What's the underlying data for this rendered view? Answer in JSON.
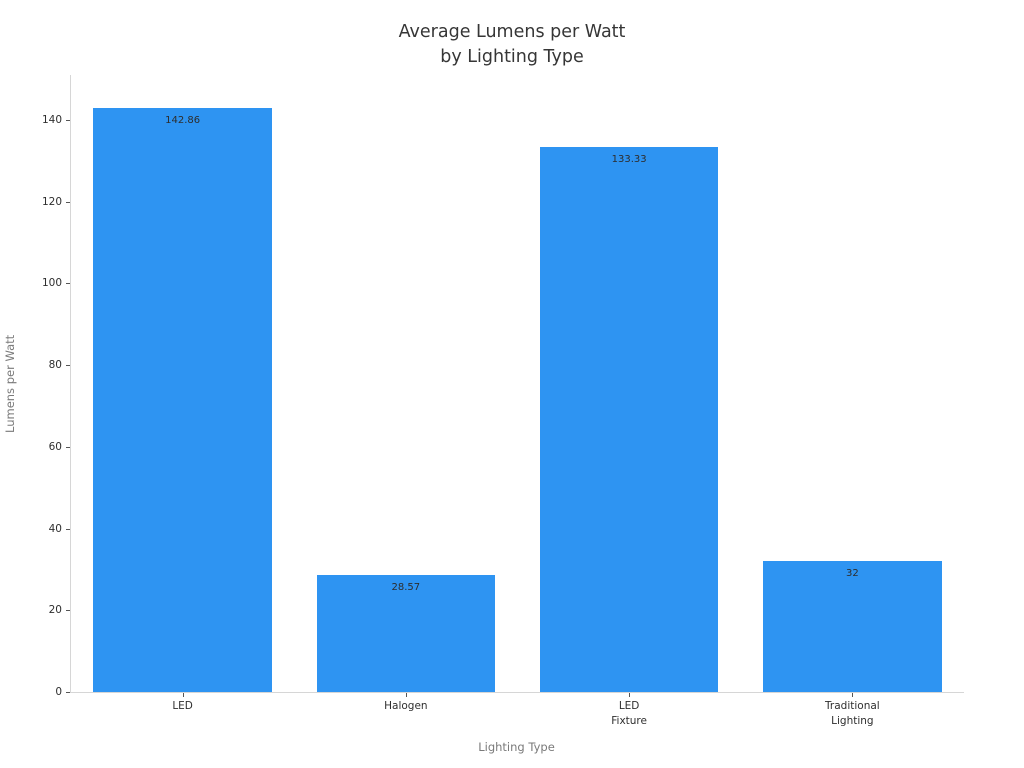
{
  "chart_data": {
    "type": "bar",
    "title": "Average Lumens per Watt\nby Lighting Type",
    "xlabel": "Lighting Type",
    "ylabel": "Lumens per Watt",
    "categories": [
      "LED",
      "Halogen",
      "LED\nFixture",
      "Traditional\nLighting"
    ],
    "values": [
      142.86,
      28.57,
      133.33,
      32
    ],
    "bar_labels": [
      "142.86",
      "28.57",
      "133.33",
      "32"
    ],
    "yticks": [
      0,
      20,
      40,
      60,
      80,
      100,
      120,
      140
    ],
    "ylim": [
      0,
      151
    ],
    "grid": false,
    "legend_position": "none",
    "colors": {
      "bar": "#2E94F2",
      "title_text": "#363636",
      "tick_text": "#2f2f2f",
      "axis_label_text": "#7a7a7a",
      "spine": "#d6d6d6",
      "tick_mark": "#555555",
      "bar_label_text": "#2d2d2d",
      "background": "#ffffff"
    }
  }
}
